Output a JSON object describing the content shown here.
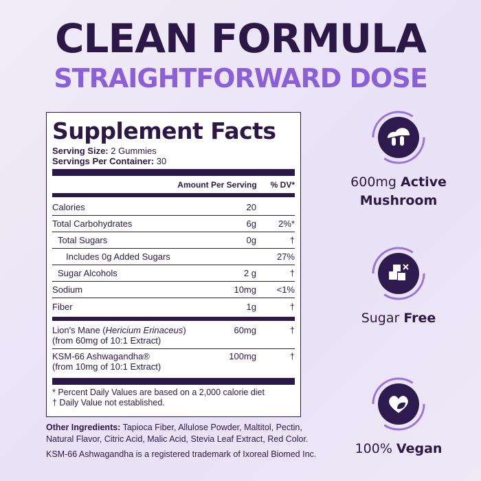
{
  "headline": "CLEAN FORMULA",
  "subheadline": "STRAIGHTFORWARD DOSE",
  "facts": {
    "title": "Supplement Facts",
    "serving_size_label": "Serving Size:",
    "serving_size": "2 Gummies",
    "servings_label": "Servings Per Container:",
    "servings": "30",
    "col_amount": "Amount Per Serving",
    "col_dv": "% DV*",
    "rows": [
      {
        "name": "Calories",
        "amount": "20",
        "dv": ""
      },
      {
        "name": "Total Carbohydrates",
        "amount": "6g",
        "dv": "2%*"
      },
      {
        "name": "Total Sugars",
        "amount": "0g",
        "dv": "†"
      },
      {
        "name": "Includes 0g Added Sugars",
        "amount": "",
        "dv": "27%"
      },
      {
        "name": "Sugar Alcohols",
        "amount": "2 g",
        "dv": "†"
      },
      {
        "name": "Sodium",
        "amount": "10mg",
        "dv": "<1%"
      },
      {
        "name": "Fiber",
        "amount": "1g",
        "dv": "†"
      }
    ],
    "actives": [
      {
        "name_pre": "Lion's Mane (",
        "name_italic": "Hericium Erinaceus",
        "name_post": ")",
        "sub": "(from 60mg of 10:1 Extract)",
        "amount": "60mg",
        "dv": "†"
      },
      {
        "name_pre": "KSM-66 Ashwagandha",
        "name_italic": "",
        "name_post": "®",
        "sub": "(from 10mg of 10:1 Extract)",
        "amount": "100mg",
        "dv": "†"
      }
    ],
    "footnote1": "* Percent Daily Values are based on a 2,000 calorie diet",
    "footnote2": "† Daily Value not established."
  },
  "other_ingredients_label": "Other Ingredients:",
  "other_ingredients": "Tapioca Fiber, Allulose Powder, Maltitol, Pectin, Natural Flavor, Citric Acid, Malic Acid, Stevia Leaf Extract, Red Color.",
  "trademark": "KSM-66 Ashwagandha is a registered trademark of Ixoreal Biomed Inc.",
  "features": [
    {
      "icon": "mushroom-icon",
      "light": "600mg ",
      "bold": "Active Mushroom"
    },
    {
      "icon": "sugar-cubes-icon",
      "light": "Sugar ",
      "bold": "Free"
    },
    {
      "icon": "heart-leaf-icon",
      "light": "100% ",
      "bold": "Vegan"
    }
  ],
  "colors": {
    "dark": "#2b1846",
    "accent": "#8a5fd8",
    "background": "#ece6f6"
  }
}
